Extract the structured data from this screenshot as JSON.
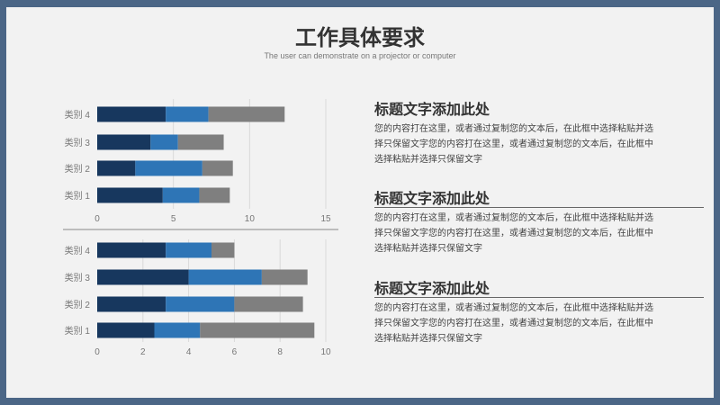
{
  "header": {
    "title": "工作具体要求",
    "subtitle": "The user can demonstrate on a projector or computer"
  },
  "colors": {
    "dark": "#17375e",
    "mid": "#2e75b6",
    "gray": "#7f7f7f",
    "divider": "#888888"
  },
  "chart_data": [
    {
      "type": "bar",
      "orientation": "horizontal",
      "stacked": true,
      "categories": [
        "类别 1",
        "类别 2",
        "类别 3",
        "类别 4"
      ],
      "series": [
        {
          "values": [
            4.3,
            2.5,
            3.5,
            4.5
          ]
        },
        {
          "values": [
            2.4,
            4.4,
            1.8,
            2.8
          ]
        },
        {
          "values": [
            2.0,
            2.0,
            3.0,
            5.0
          ]
        }
      ],
      "xlim": [
        0,
        15
      ],
      "xticks": [
        "0",
        "5",
        "10",
        "15"
      ],
      "grid": "vertical"
    },
    {
      "type": "bar",
      "orientation": "horizontal",
      "stacked": true,
      "categories": [
        "类别 1",
        "类别 2",
        "类别 3",
        "类别 4"
      ],
      "series": [
        {
          "values": [
            2.5,
            3.0,
            4.0,
            3.0
          ]
        },
        {
          "values": [
            2.0,
            3.0,
            3.2,
            2.0
          ]
        },
        {
          "values": [
            5.0,
            3.0,
            2.0,
            1.0
          ]
        }
      ],
      "xlim": [
        0,
        10
      ],
      "xticks": [
        "0",
        "2",
        "4",
        "6",
        "8",
        "10"
      ],
      "grid": "vertical"
    }
  ],
  "sections": [
    {
      "title": "标题文字添加此处",
      "lines": [
        "您的内容打在这里，或者通过复制您的文本后，在此框中选择粘贴并选",
        "择只保留文字您的内容打在这里，或者通过复制您的文本后，在此框中",
        "选择粘贴并选择只保留文字"
      ]
    },
    {
      "title": "标题文字添加此处",
      "lines": [
        "您的内容打在这里，或者通过复制您的文本后，在此框中选择粘贴并选",
        "择只保留文字您的内容打在这里，或者通过复制您的文本后，在此框中",
        "选择粘贴并选择只保留文字"
      ]
    },
    {
      "title": "标题文字添加此处",
      "lines": [
        "您的内容打在这里，或者通过复制您的文本后，在此框中选择粘贴并选",
        "择只保留文字您的内容打在这里，或者通过复制您的文本后，在此框中",
        "选择粘贴并选择只保留文字"
      ]
    }
  ]
}
